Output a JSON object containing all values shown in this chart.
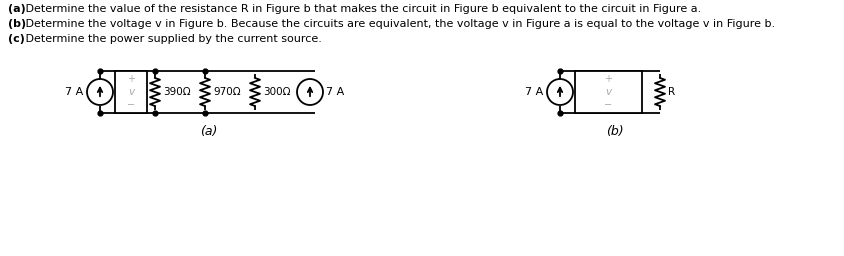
{
  "title_lines": [
    [
      "(a)",
      " Determine the value of the resistance R in Figure b that makes the circuit in Figure b equivalent to the circuit in Figure a."
    ],
    [
      "(b)",
      " Determine the voltage v in Figure b. Because the circuits are equivalent, the voltage v in Figure a is equal to the voltage v in Figure b."
    ],
    [
      "(c)",
      " Determine the power supplied by the current source."
    ]
  ],
  "bg_color": "#ffffff",
  "text_color": "#000000",
  "circuit_color": "#000000",
  "gray_color": "#aaaaaa",
  "label_a": "(a)",
  "label_b": "(b)",
  "fig_a": {
    "current_source_label": "7 A",
    "voltage_label": "v",
    "resistors": [
      "390Ω",
      "970Ω",
      "300Ω"
    ],
    "current_label_right": "7 A"
  },
  "fig_b": {
    "current_source_label": "7 A",
    "voltage_label": "v",
    "resistor_label": "R"
  }
}
